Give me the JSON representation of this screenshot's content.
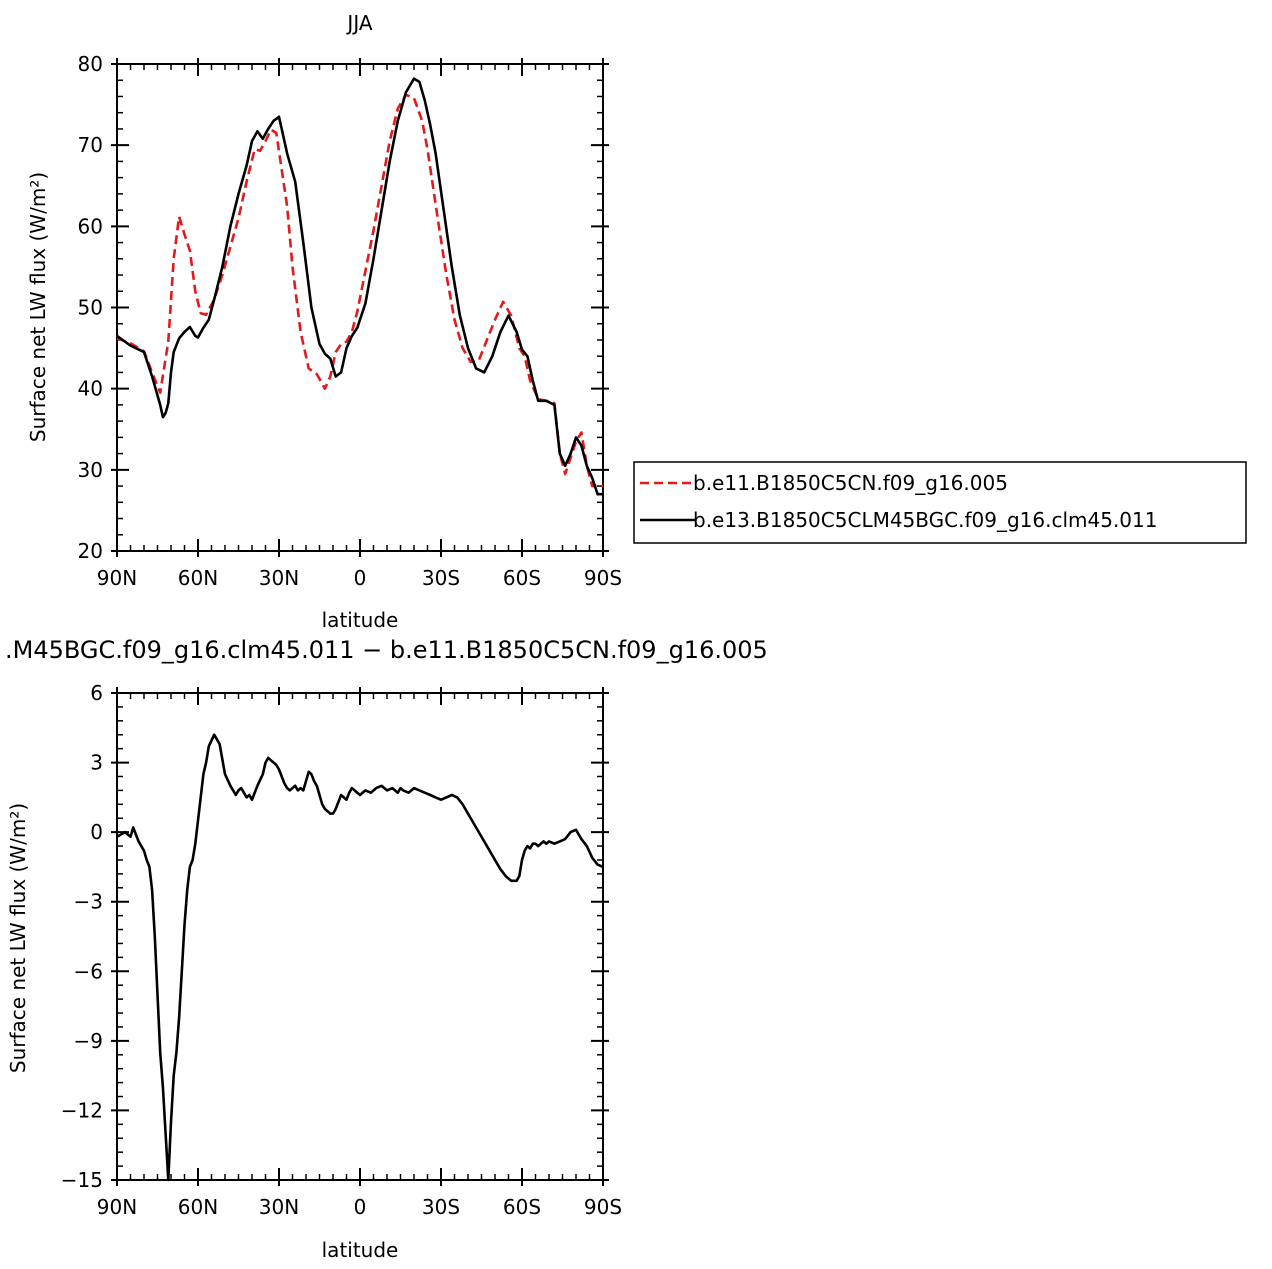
{
  "chart_data": [
    {
      "type": "line",
      "title": "JJA",
      "xlabel": "latitude",
      "ylabel": "Surface net LW flux (W/m²)",
      "xlim": [
        90,
        -90
      ],
      "ylim": [
        20,
        80
      ],
      "xticks": [
        90,
        60,
        30,
        0,
        -30,
        -60,
        -90
      ],
      "xtick_labels": [
        "90N",
        "60N",
        "30N",
        "0",
        "30S",
        "60S",
        "90S"
      ],
      "yticks": [
        20,
        30,
        40,
        50,
        60,
        70,
        80
      ],
      "ytick_labels": [
        "20",
        "30",
        "40",
        "50",
        "60",
        "70",
        "80"
      ],
      "legend_position": "right",
      "series": [
        {
          "name": "b.e11.B1850C5CN.f09_g16.005",
          "color": "#e31a1c",
          "dash": "dashed",
          "x": [
            90,
            85,
            80,
            77,
            74,
            71,
            69,
            67,
            65,
            63,
            61,
            59,
            57,
            54,
            51,
            48,
            45,
            42,
            39,
            37,
            35,
            33,
            31,
            29,
            27,
            25,
            22,
            19,
            16,
            13,
            11,
            9,
            7,
            5,
            3,
            1,
            -2,
            -5,
            -8,
            -11,
            -14,
            -17,
            -20,
            -23,
            -25,
            -27,
            -29,
            -32,
            -35,
            -38,
            -41,
            -44,
            -47,
            -50,
            -53,
            -56,
            -59,
            -61,
            -63,
            -66,
            -69,
            -72,
            -74,
            -76,
            -78,
            -80,
            -82,
            -84,
            -86,
            -88,
            -90
          ],
          "y": [
            46.2,
            45.6,
            44.6,
            42,
            39.5,
            45.8,
            56,
            61.2,
            59,
            57,
            52,
            49.3,
            49.1,
            51,
            54,
            57.5,
            61,
            65.5,
            69.5,
            69.3,
            70.5,
            71.9,
            71.5,
            67,
            62.5,
            55,
            47,
            42.5,
            41.8,
            40,
            41.5,
            44.5,
            45.5,
            45.8,
            47,
            49.5,
            54.5,
            59.5,
            65,
            70.5,
            74.5,
            76.2,
            75.8,
            73,
            69.5,
            65,
            60.5,
            54,
            48.5,
            45,
            43.3,
            43.5,
            46,
            48.5,
            50.7,
            49,
            45,
            44,
            41,
            38.7,
            38.5,
            38.2,
            32,
            29.5,
            31.5,
            33.5,
            34.6,
            30.5,
            28,
            28,
            28
          ]
        },
        {
          "name": "b.e13.B1850C5CLM45BGC.f09_g16.clm45.011",
          "color": "#000000",
          "dash": "solid",
          "x": [
            90,
            85,
            80,
            77,
            74,
            73,
            72,
            71,
            70,
            69,
            67,
            65,
            63,
            61,
            60,
            58,
            56,
            54,
            51,
            48,
            45,
            42,
            40,
            38,
            36,
            34,
            32,
            30,
            27,
            24,
            21,
            18,
            15,
            13,
            11,
            9,
            7,
            5,
            3,
            1,
            -2,
            -5,
            -8,
            -11,
            -14,
            -17,
            -20,
            -22,
            -24,
            -26,
            -28,
            -31,
            -34,
            -37,
            -40,
            -43,
            -46,
            -49,
            -52,
            -55,
            -58,
            -60,
            -62,
            -64,
            -66,
            -69,
            -72,
            -74,
            -76,
            -78,
            -80,
            -82,
            -84,
            -86,
            -88,
            -90
          ],
          "y": [
            46.5,
            45.3,
            44.5,
            41.5,
            38,
            36.5,
            37,
            38.2,
            42,
            44.5,
            46.2,
            47,
            47.6,
            46.5,
            46.3,
            47.5,
            48.5,
            51,
            55,
            60,
            64,
            67.5,
            70.5,
            71.7,
            70.8,
            72,
            73,
            73.5,
            69,
            65.5,
            58,
            50,
            45.5,
            44.3,
            43.7,
            41.5,
            42,
            45,
            46.5,
            47.5,
            50.5,
            56,
            62,
            68,
            73,
            76.5,
            78.2,
            77.8,
            75.5,
            72.5,
            69,
            62,
            55,
            49,
            45,
            42.5,
            42,
            44,
            47,
            49,
            47,
            44.8,
            44,
            41,
            38.5,
            38.5,
            38,
            32,
            30.5,
            32,
            34,
            33,
            30.5,
            29,
            27,
            27
          ]
        }
      ]
    },
    {
      "type": "line",
      "title": ".M45BGC.f09_g16.clm45.011 − b.e11.B1850C5CN.f09_g16.005",
      "xlabel": "latitude",
      "ylabel": "Surface net LW flux (W/m²)",
      "xlim": [
        90,
        -90
      ],
      "ylim": [
        -15,
        6
      ],
      "xticks": [
        90,
        60,
        30,
        0,
        -30,
        -60,
        -90
      ],
      "xtick_labels": [
        "90N",
        "60N",
        "30N",
        "0",
        "30S",
        "60S",
        "90S"
      ],
      "yticks": [
        -15,
        -12,
        -9,
        -6,
        -3,
        0,
        3,
        6
      ],
      "ytick_labels": [
        "−15",
        "−12",
        "−9",
        "−6",
        "−3",
        "0",
        "3",
        "6"
      ],
      "series": [
        {
          "name": "",
          "color": "#000000",
          "dash": "solid",
          "x": [
            90,
            87,
            85,
            84,
            83,
            82,
            81,
            80,
            79,
            78,
            77,
            76,
            75,
            74,
            73,
            72,
            71,
            70,
            69,
            68,
            67,
            66,
            65,
            64,
            63,
            62,
            61,
            60,
            59,
            58,
            57,
            56,
            54,
            52,
            50,
            48,
            47,
            46,
            45,
            44,
            43,
            42,
            41,
            40,
            38,
            36,
            35,
            34,
            33,
            32,
            31,
            30,
            29,
            28,
            27,
            26,
            25,
            24,
            23,
            22,
            21,
            20,
            19,
            18,
            17,
            16,
            15,
            14,
            13,
            12,
            11,
            10,
            9,
            8,
            7,
            6,
            5,
            4,
            3,
            2,
            1,
            0,
            -2,
            -4,
            -6,
            -8,
            -10,
            -12,
            -14,
            -15,
            -16,
            -18,
            -20,
            -22,
            -24,
            -26,
            -28,
            -30,
            -32,
            -34,
            -36,
            -38,
            -40,
            -42,
            -44,
            -46,
            -48,
            -50,
            -52,
            -54,
            -56,
            -58,
            -59,
            -60,
            -61,
            -62,
            -63,
            -64,
            -65,
            -66,
            -67,
            -68,
            -69,
            -70,
            -72,
            -74,
            -76,
            -78,
            -80,
            -82,
            -84,
            -86,
            -88,
            -90
          ],
          "y": [
            -0.2,
            0,
            -0.2,
            0.2,
            -0.1,
            -0.4,
            -0.6,
            -0.8,
            -1.2,
            -1.5,
            -2.5,
            -4.5,
            -7,
            -9.5,
            -11,
            -13,
            -15,
            -12.5,
            -10.5,
            -9.5,
            -8,
            -6,
            -4,
            -2.5,
            -1.5,
            -1.2,
            -0.5,
            0.5,
            1.5,
            2.5,
            3,
            3.7,
            4.2,
            3.8,
            2.5,
            2,
            1.8,
            1.6,
            1.8,
            1.9,
            1.7,
            1.5,
            1.6,
            1.4,
            2,
            2.5,
            3,
            3.2,
            3.1,
            3,
            2.9,
            2.7,
            2.4,
            2.1,
            1.9,
            1.8,
            1.9,
            2,
            1.8,
            1.9,
            1.8,
            2.2,
            2.6,
            2.5,
            2.2,
            2,
            1.6,
            1.2,
            1,
            0.9,
            0.8,
            0.8,
            1,
            1.3,
            1.6,
            1.5,
            1.4,
            1.7,
            1.9,
            1.8,
            1.7,
            1.6,
            1.8,
            1.7,
            1.9,
            2,
            1.8,
            1.9,
            1.7,
            1.9,
            1.8,
            1.7,
            1.9,
            1.8,
            1.7,
            1.6,
            1.5,
            1.4,
            1.5,
            1.6,
            1.5,
            1.2,
            0.8,
            0.4,
            0,
            -0.4,
            -0.8,
            -1.2,
            -1.6,
            -1.9,
            -2.1,
            -2.1,
            -1.9,
            -1.2,
            -0.8,
            -0.6,
            -0.7,
            -0.5,
            -0.5,
            -0.6,
            -0.5,
            -0.4,
            -0.5,
            -0.4,
            -0.5,
            -0.4,
            -0.3,
            0,
            0.1,
            -0.3,
            -0.6,
            -1.1,
            -1.4,
            -1.5
          ]
        }
      ]
    }
  ]
}
